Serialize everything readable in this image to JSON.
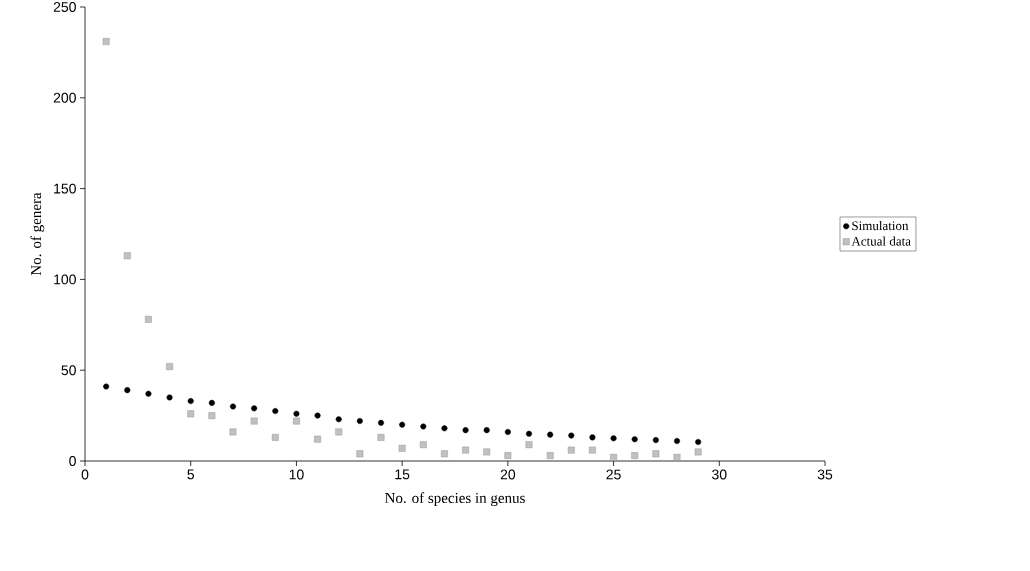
{
  "chart_data": {
    "type": "scatter",
    "xlabel": "No. of species in genus",
    "ylabel": "No. of genera",
    "x": [
      1,
      2,
      3,
      4,
      5,
      6,
      7,
      8,
      9,
      10,
      11,
      12,
      13,
      14,
      15,
      16,
      17,
      18,
      19,
      20,
      21,
      22,
      23,
      24,
      25,
      26,
      27,
      28,
      29
    ],
    "series": [
      {
        "name": "Simulation",
        "color": "#000000",
        "marker": "circle",
        "values": [
          41,
          39,
          37,
          35,
          33,
          32,
          30,
          29,
          27.5,
          26,
          25,
          23,
          22,
          21,
          20,
          19,
          18,
          17,
          17,
          16,
          15,
          14.5,
          14,
          13,
          12.5,
          12,
          11.5,
          11,
          10.5
        ]
      },
      {
        "name": "Actual data",
        "color": "#c0c0c0",
        "marker": "square",
        "values": [
          231,
          113,
          78,
          52,
          26,
          25,
          16,
          22,
          13,
          22,
          12,
          16,
          4,
          13,
          7,
          9,
          4,
          6,
          5,
          3,
          9,
          3,
          6,
          6,
          2,
          3,
          4,
          2,
          5
        ]
      }
    ],
    "xlim": [
      0,
      35
    ],
    "xticks": [
      0,
      5,
      10,
      15,
      20,
      25,
      30,
      35
    ],
    "ylim": [
      0,
      250
    ],
    "yticks": [
      0,
      50,
      100,
      150,
      200,
      250
    ],
    "grid": false,
    "legend": "right"
  }
}
